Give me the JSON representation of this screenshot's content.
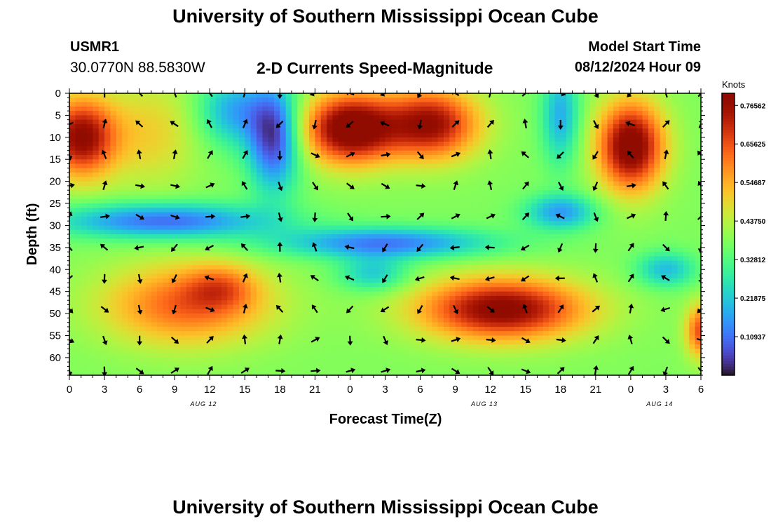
{
  "header": {
    "title": "University of Southern Mississippi Ocean Cube",
    "station_id": "USMR1",
    "coords": "30.0770N  88.5830W",
    "subtitle": "2-D Currents Speed-Magnitude",
    "start_label": "Model Start Time",
    "start_value": "08/12/2024 Hour 09"
  },
  "footer": {
    "title": "University of Southern Mississippi Ocean Cube"
  },
  "chart_data": {
    "type": "heatmap",
    "title": "2-D Currents Speed-Magnitude",
    "xlabel": "Forecast Time(Z)",
    "ylabel": "Depth (ft)",
    "x_range": [
      0,
      54
    ],
    "y_range": [
      0,
      64
    ],
    "x_ticks": [
      "0",
      "3",
      "6",
      "9",
      "12",
      "15",
      "18",
      "21",
      "0",
      "3",
      "6",
      "9",
      "12",
      "15",
      "18",
      "21",
      "0",
      "3",
      "6"
    ],
    "date_labels": [
      {
        "hour": 11,
        "text": "AUG 12"
      },
      {
        "hour": 35,
        "text": "AUG 13"
      },
      {
        "hour": 50,
        "text": "AUG 14"
      }
    ],
    "y_ticks": [
      0,
      5,
      10,
      15,
      20,
      25,
      30,
      35,
      40,
      45,
      50,
      55,
      60
    ],
    "colorbar": {
      "title": "Knots",
      "min": 0.0,
      "max": 0.8,
      "tick_values": [
        0.10937,
        0.21875,
        0.32812,
        0.4375,
        0.54687,
        0.65625,
        0.76562
      ],
      "tick_labels": [
        "0.10937",
        "0.21875",
        "0.32812",
        "0.43750",
        "0.54687",
        "0.65625",
        "0.76562"
      ]
    },
    "speed_regions": [
      {
        "x": 1,
        "y": 10,
        "sx": 3,
        "sy": 9,
        "v": 0.4
      },
      {
        "x": 7,
        "y": 9,
        "sx": 4,
        "sy": 12,
        "v": 0.12
      },
      {
        "x": 14,
        "y": 4,
        "sx": 3,
        "sy": 8,
        "v": -0.2
      },
      {
        "x": 24,
        "y": 8,
        "sx": 4,
        "sy": 8,
        "v": 0.46
      },
      {
        "x": 31,
        "y": 7,
        "sx": 4,
        "sy": 8,
        "v": 0.38
      },
      {
        "x": 17.5,
        "y": 10,
        "sx": 2.2,
        "sy": 12,
        "v": -0.34
      },
      {
        "x": 42,
        "y": 5,
        "sx": 1.6,
        "sy": 11,
        "v": -0.2
      },
      {
        "x": 48,
        "y": 12,
        "sx": 2.8,
        "sy": 10,
        "v": 0.45
      },
      {
        "x": 8,
        "y": 29,
        "sx": 9,
        "sy": 4,
        "v": -0.28
      },
      {
        "x": 27,
        "y": 34,
        "sx": 9,
        "sy": 3.5,
        "v": -0.26
      },
      {
        "x": 42,
        "y": 27,
        "sx": 3,
        "sy": 4,
        "v": -0.22
      },
      {
        "x": 10,
        "y": 48,
        "sx": 7,
        "sy": 9,
        "v": 0.26
      },
      {
        "x": 13,
        "y": 44,
        "sx": 3,
        "sy": 5,
        "v": 0.14
      },
      {
        "x": 37,
        "y": 49,
        "sx": 7,
        "sy": 7,
        "v": 0.42
      },
      {
        "x": 26,
        "y": 41,
        "sx": 3,
        "sy": 4,
        "v": -0.16
      },
      {
        "x": 51,
        "y": 40,
        "sx": 2.5,
        "sy": 4,
        "v": -0.18
      },
      {
        "x": 54,
        "y": 54,
        "sx": 1.3,
        "sy": 6,
        "v": 0.28
      }
    ],
    "arrow_grid": {
      "hours_step": 3,
      "depth_step": 7,
      "depth_start": 0
    }
  }
}
